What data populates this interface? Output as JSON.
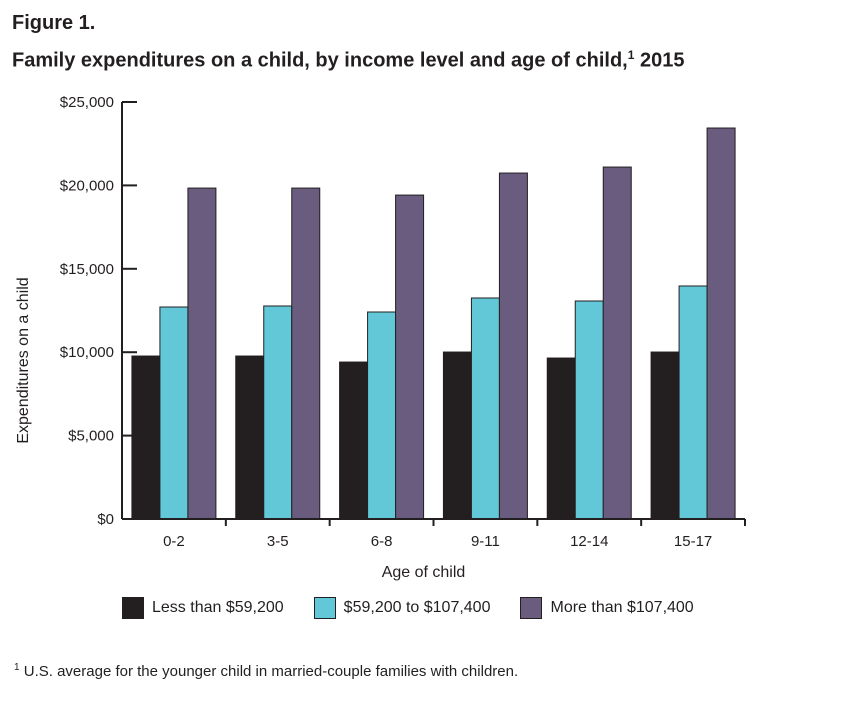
{
  "figure_label": "Figure 1.",
  "title": "Family expenditures on a child, by income level and age of child,",
  "title_footnote_mark": "1",
  "title_year": "2015",
  "footnote": {
    "mark": "1",
    "text": "U.S. average for the younger child in married-couple families with children."
  },
  "chart_data": {
    "type": "bar",
    "categories": [
      "0-2",
      "3-5",
      "6-8",
      "9-11",
      "12-14",
      "15-17"
    ],
    "series": [
      {
        "name": "Less than $59,200",
        "color": "#231f20",
        "values": [
          9770,
          9770,
          9410,
          10010,
          9650,
          10010
        ]
      },
      {
        "name": "$59,200 to $107,400",
        "color": "#62c8d8",
        "values": [
          12710,
          12770,
          12410,
          13250,
          13070,
          13970
        ]
      },
      {
        "name": "More than $107,400",
        "color": "#695c7e",
        "values": [
          19840,
          19840,
          19420,
          20740,
          21100,
          23440
        ]
      }
    ],
    "xlabel": "Age of child",
    "ylabel": "Expenditures on a child",
    "ylim": [
      0,
      25000
    ],
    "yticks": [
      "$0",
      "$5,000",
      "$10,000",
      "$15,000",
      "$20,000",
      "$25,000"
    ],
    "ytick_values": [
      0,
      5000,
      10000,
      15000,
      20000,
      25000
    ],
    "grid": false,
    "legend_position": "bottom"
  }
}
